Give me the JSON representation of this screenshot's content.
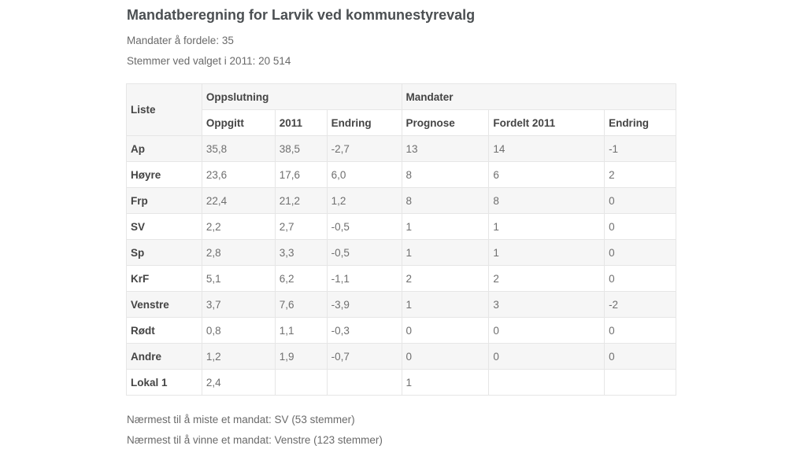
{
  "title": "Mandatberegning for Larvik ved kommunestyrevalg",
  "seats_to_distribute": "Mandater å fordele: 35",
  "votes_2011": "Stemmer ved valget i 2011: 20 514",
  "table": {
    "header_groups": {
      "liste": "Liste",
      "oppslutning": "Oppslutning",
      "mandater": "Mandater"
    },
    "subheaders": {
      "oppgitt": "Oppgitt",
      "year_2011": "2011",
      "endring_support": "Endring",
      "prognose": "Prognose",
      "fordelt_2011": "Fordelt 2011",
      "endring_seats": "Endring"
    },
    "rows": [
      {
        "party": "Ap",
        "oppgitt": "35,8",
        "y2011": "38,5",
        "endring": "-2,7",
        "prognose": "13",
        "fordelt": "14",
        "mandat_endring": "-1"
      },
      {
        "party": "Høyre",
        "oppgitt": "23,6",
        "y2011": "17,6",
        "endring": "6,0",
        "prognose": "8",
        "fordelt": "6",
        "mandat_endring": "2"
      },
      {
        "party": "Frp",
        "oppgitt": "22,4",
        "y2011": "21,2",
        "endring": "1,2",
        "prognose": "8",
        "fordelt": "8",
        "mandat_endring": "0"
      },
      {
        "party": "SV",
        "oppgitt": "2,2",
        "y2011": "2,7",
        "endring": "-0,5",
        "prognose": "1",
        "fordelt": "1",
        "mandat_endring": "0"
      },
      {
        "party": "Sp",
        "oppgitt": "2,8",
        "y2011": "3,3",
        "endring": "-0,5",
        "prognose": "1",
        "fordelt": "1",
        "mandat_endring": "0"
      },
      {
        "party": "KrF",
        "oppgitt": "5,1",
        "y2011": "6,2",
        "endring": "-1,1",
        "prognose": "2",
        "fordelt": "2",
        "mandat_endring": "0"
      },
      {
        "party": "Venstre",
        "oppgitt": "3,7",
        "y2011": "7,6",
        "endring": "-3,9",
        "prognose": "1",
        "fordelt": "3",
        "mandat_endring": "-2"
      },
      {
        "party": "Rødt",
        "oppgitt": "0,8",
        "y2011": "1,1",
        "endring": "-0,3",
        "prognose": "0",
        "fordelt": "0",
        "mandat_endring": "0"
      },
      {
        "party": "Andre",
        "oppgitt": "1,2",
        "y2011": "1,9",
        "endring": "-0,7",
        "prognose": "0",
        "fordelt": "0",
        "mandat_endring": "0"
      },
      {
        "party": "Lokal 1",
        "oppgitt": "2,4",
        "y2011": "",
        "endring": "",
        "prognose": "1",
        "fordelt": "",
        "mandat_endring": ""
      }
    ]
  },
  "notes": {
    "closest_to_lose": "Nærmest til å miste et mandat: SV (53 stemmer)",
    "closest_to_win": "Nærmest til å vinne et mandat: Venstre (123 stemmer)"
  }
}
